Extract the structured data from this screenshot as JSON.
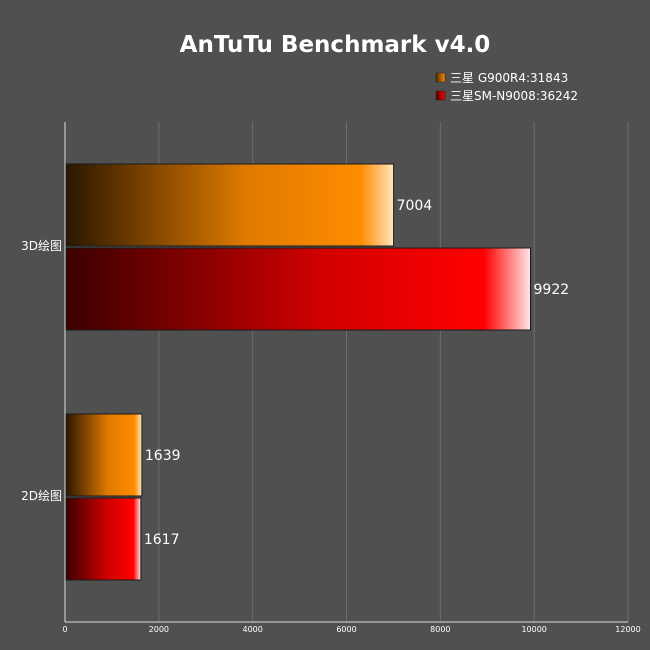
{
  "chart_data": {
    "type": "bar",
    "orientation": "horizontal",
    "title": "AnTuTu Benchmark v4.0",
    "categories": [
      "3D绘图",
      "2D绘图"
    ],
    "series": [
      {
        "name": "三星 G900R4:31843",
        "values": [
          7004,
          1639
        ],
        "color": "#ff8c00"
      },
      {
        "name": "三星SM-N9008:36242",
        "values": [
          9922,
          1617
        ],
        "color": "#ff0000"
      }
    ],
    "data_labels": true,
    "xlim": [
      0,
      12000
    ],
    "x_ticks": [
      0,
      2000,
      4000,
      6000,
      8000,
      10000,
      12000
    ],
    "grid": true,
    "legend_position": "top-right"
  }
}
